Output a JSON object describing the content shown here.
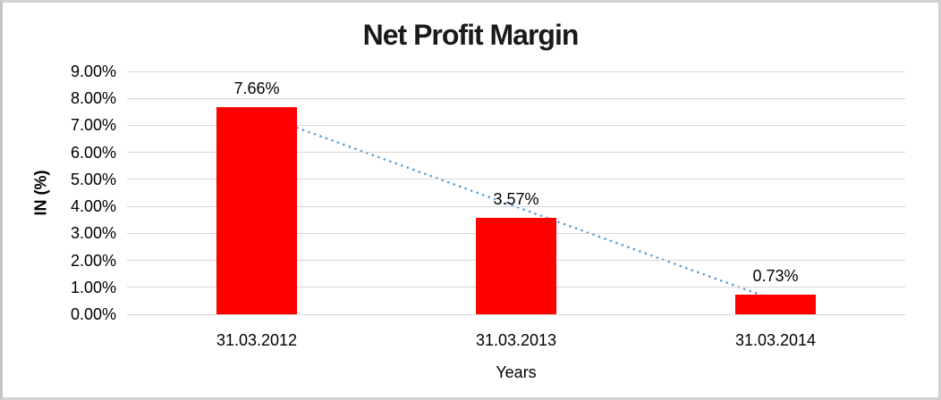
{
  "frame": {
    "background": "#ffffff",
    "border_color": "#d2d2d2"
  },
  "chart_data": {
    "type": "bar",
    "title": "Net Profit Margin",
    "xlabel": "Years",
    "ylabel": "IN (%)",
    "categories": [
      "31.03.2012",
      "31.03.2013",
      "31.03.2014"
    ],
    "series": [
      {
        "name": "Net Profit Margin",
        "values": [
          7.66,
          3.57,
          0.73
        ]
      }
    ],
    "data_labels": [
      "7.66%",
      "3.57%",
      "0.73%"
    ],
    "ylim": [
      0,
      9
    ],
    "ytick_step": 1,
    "ytick_labels": [
      "0.00%",
      "1.00%",
      "2.00%",
      "3.00%",
      "4.00%",
      "5.00%",
      "6.00%",
      "7.00%",
      "8.00%",
      "9.00%"
    ],
    "grid": true,
    "legend": "none",
    "bar_color": "#ff0000",
    "gridline_color": "#d6d6d6",
    "axis_line_color": "#d6d6d6",
    "text_color": "#000000",
    "trendline": {
      "type": "linear",
      "style": "dotted",
      "color": "#5b9bd5",
      "start_value": 7.45,
      "end_value": 0.52
    }
  }
}
